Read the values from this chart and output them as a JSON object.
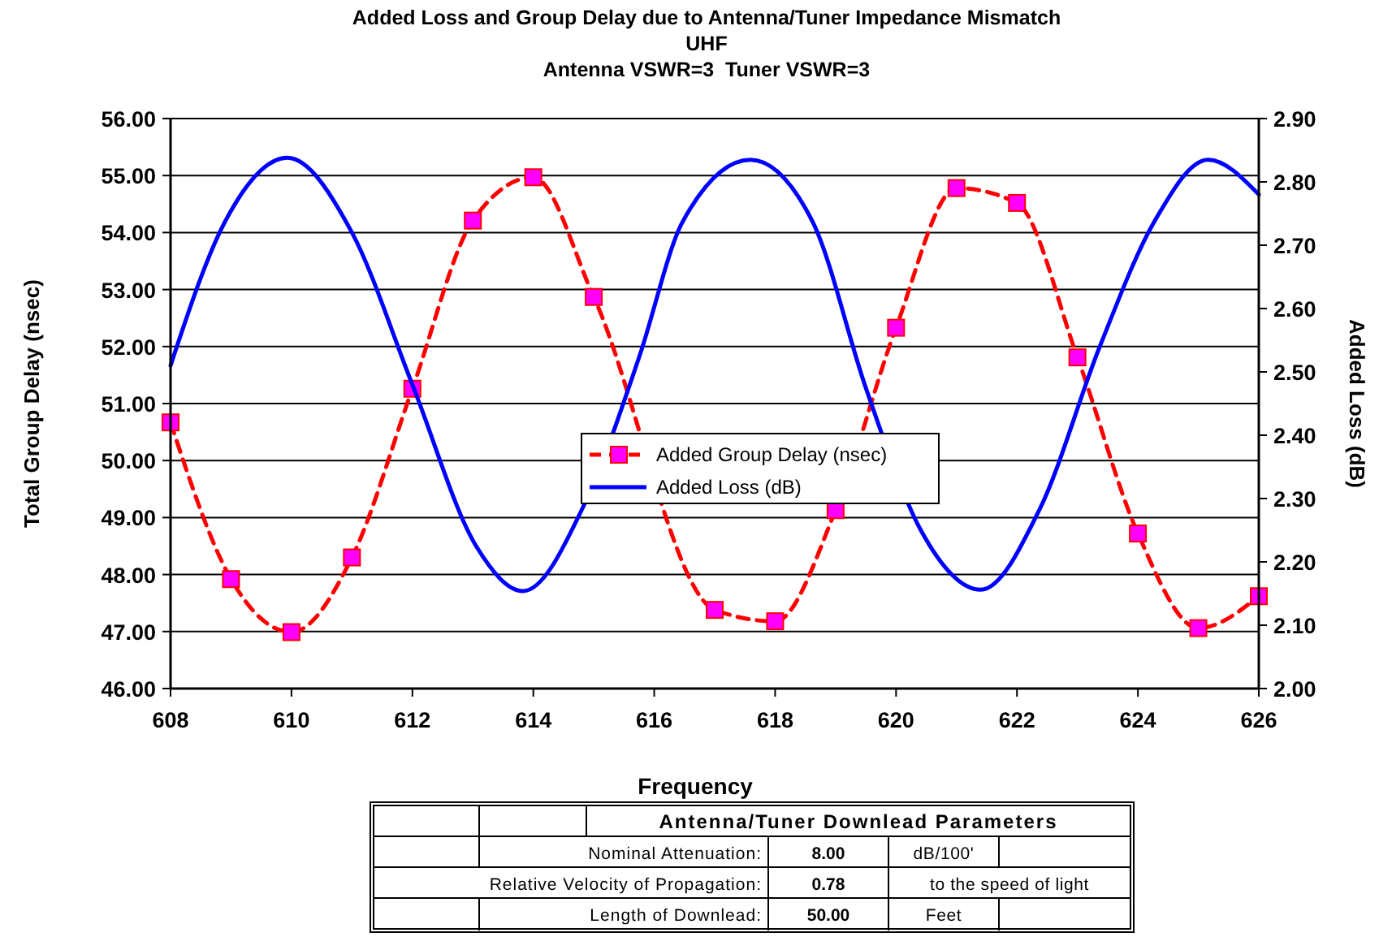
{
  "chart_data": {
    "type": "line",
    "title": "Added Loss and Group Delay due to Antenna/Tuner Impedance Mismatch",
    "subtitle": "UHF\nAntenna VSWR=3  Tuner VSWR=3",
    "xlabel": "Frequency",
    "ylabel": "Total Group Delay (nsec)",
    "y2label": "Added Loss (dB)",
    "xlim": [
      608,
      626
    ],
    "xticks": [
      608,
      610,
      612,
      614,
      616,
      618,
      620,
      622,
      624,
      626
    ],
    "ylim": [
      46,
      56
    ],
    "yticks": [
      {
        "value": 46,
        "label": "46.00"
      },
      {
        "value": 47,
        "label": "47.00"
      },
      {
        "value": 48,
        "label": "48.00"
      },
      {
        "value": 49,
        "label": "49.00"
      },
      {
        "value": 50,
        "label": "50.00"
      },
      {
        "value": 51,
        "label": "51.00"
      },
      {
        "value": 52,
        "label": "52.00"
      },
      {
        "value": 53,
        "label": "53.00"
      },
      {
        "value": 54,
        "label": "54.00"
      },
      {
        "value": 55,
        "label": "55.00"
      },
      {
        "value": 56,
        "label": "56.00"
      }
    ],
    "y2lim": [
      2.0,
      2.9
    ],
    "y2ticks": [
      {
        "value": 2.0,
        "label": "2.00"
      },
      {
        "value": 2.1,
        "label": "2.10"
      },
      {
        "value": 2.2,
        "label": "2.20"
      },
      {
        "value": 2.3,
        "label": "2.30"
      },
      {
        "value": 2.4,
        "label": "2.40"
      },
      {
        "value": 2.5,
        "label": "2.50"
      },
      {
        "value": 2.6,
        "label": "2.60"
      },
      {
        "value": 2.7,
        "label": "2.70"
      },
      {
        "value": 2.8,
        "label": "2.80"
      },
      {
        "value": 2.9,
        "label": "2.90"
      }
    ],
    "grid": "y",
    "legend": "center",
    "series": [
      {
        "name": "Added Group Delay (nsec)",
        "color": "#ff0000",
        "marker": "square",
        "line_style": "dashed",
        "x": [
          608,
          609,
          610,
          611,
          612,
          613,
          614,
          615,
          616,
          617,
          618,
          619,
          620,
          621,
          622,
          623,
          624,
          625,
          626
        ],
        "values": [
          50.67,
          47.92,
          46.99,
          48.3,
          51.26,
          54.21,
          54.97,
          52.87,
          null,
          47.38,
          47.18,
          49.13,
          52.33,
          54.78,
          54.52,
          51.81,
          48.72,
          47.06,
          47.62
        ]
      },
      {
        "name": "Added Loss (dB)",
        "axis": "y2",
        "color": "#0000ff",
        "marker": "none",
        "line_style": "solid",
        "x": [
          608,
          608.9,
          609.93,
          611.0,
          612.0,
          613.06,
          613.83,
          614.85,
          615.75,
          616.47,
          617.59,
          618.62,
          619.51,
          620.41,
          621.4,
          622.38,
          623.37,
          624.27,
          625.16,
          626
        ],
        "values": [
          2.51,
          2.737,
          2.838,
          2.72,
          2.48,
          2.224,
          2.154,
          2.292,
          2.523,
          2.737,
          2.835,
          2.737,
          2.472,
          2.25,
          2.156,
          2.284,
          2.54,
          2.737,
          2.835,
          2.78
        ]
      }
    ],
    "annotations": [
      "Antenna/Tuner Downlead Parameters",
      "Nominal Attenuation:",
      "8.00",
      "dB/100'",
      "Relative Velocity of Propagation:",
      "0.78",
      "to the speed of light",
      "Length of Downlead:",
      "50.00",
      "Feet"
    ]
  }
}
